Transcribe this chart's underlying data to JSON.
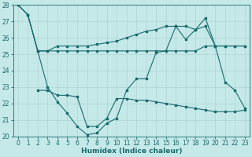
{
  "xlabel": "Humidex (Indice chaleur)",
  "xlim_min": -0.5,
  "xlim_max": 23.5,
  "ylim_min": 20,
  "ylim_max": 28,
  "xticks": [
    0,
    1,
    2,
    3,
    4,
    5,
    6,
    7,
    8,
    9,
    10,
    11,
    12,
    13,
    14,
    15,
    16,
    17,
    18,
    19,
    20,
    21,
    22,
    23
  ],
  "yticks": [
    20,
    21,
    22,
    23,
    24,
    25,
    26,
    27,
    28
  ],
  "bg_color": "#c5e8e8",
  "grid_color": "#b0d4d4",
  "line_color": "#1a6b6b",
  "line1_x": [
    0,
    1,
    2,
    3,
    4,
    5,
    6,
    7,
    8,
    9,
    10,
    11,
    12,
    13,
    14,
    15,
    16,
    17,
    18,
    19,
    20,
    21,
    22,
    23
  ],
  "line1_y": [
    28,
    27.4,
    25.2,
    25.2,
    25.5,
    25.5,
    25.5,
    25.5,
    25.6,
    25.7,
    25.8,
    26.0,
    26.2,
    26.4,
    26.5,
    26.7,
    26.7,
    26.7,
    26.5,
    26.7,
    25.5,
    25.5,
    25.5,
    25.5
  ],
  "line2_x": [
    0,
    1,
    2,
    3,
    4,
    5,
    6,
    7,
    8,
    9,
    10,
    11,
    12,
    13,
    14,
    15,
    16,
    17,
    18,
    19,
    20,
    21,
    22,
    23
  ],
  "line2_y": [
    28,
    27.4,
    25.2,
    25.2,
    25.2,
    25.2,
    25.2,
    25.2,
    25.2,
    25.2,
    25.2,
    25.2,
    25.2,
    25.2,
    25.2,
    25.2,
    25.2,
    25.2,
    25.2,
    25.5,
    25.5,
    25.5,
    25.5,
    25.5
  ],
  "line3_x": [
    0,
    1,
    2,
    3,
    4,
    5,
    6,
    7,
    8,
    9,
    10,
    11,
    12,
    13,
    14,
    15,
    16,
    17,
    18,
    19,
    20,
    21,
    22,
    23
  ],
  "line3_y": [
    28,
    27.4,
    25.2,
    23.0,
    22.1,
    21.4,
    20.6,
    20.1,
    20.2,
    20.8,
    21.1,
    22.8,
    23.5,
    23.5,
    25.1,
    25.2,
    26.7,
    25.9,
    26.5,
    27.2,
    25.5,
    23.3,
    22.8,
    21.7
  ],
  "line4_x": [
    2,
    3,
    4,
    5,
    6,
    7,
    8,
    9,
    10,
    11,
    12,
    13,
    14,
    15,
    16,
    17,
    18,
    19,
    20,
    21,
    22,
    23
  ],
  "line4_y": [
    22.8,
    22.8,
    22.5,
    22.5,
    22.4,
    20.6,
    20.6,
    21.1,
    22.3,
    22.3,
    22.2,
    22.2,
    22.1,
    22.0,
    21.9,
    21.8,
    21.7,
    21.6,
    21.5,
    21.5,
    21.5,
    21.6
  ]
}
